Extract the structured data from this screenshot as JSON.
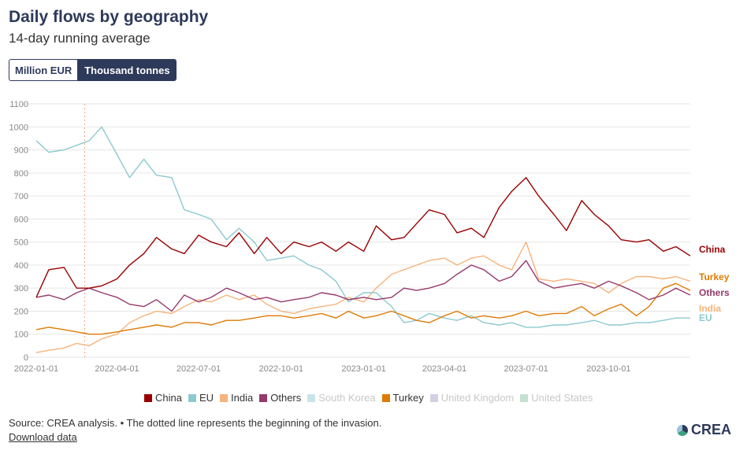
{
  "header": {
    "title": "Daily flows by geography",
    "subtitle": "14-day running average"
  },
  "toggle": {
    "option_a": "Million EUR",
    "option_b": "Thousand tonnes",
    "selected": "Thousand tonnes"
  },
  "chart_data": {
    "type": "line",
    "title": "Daily flows by geography",
    "subtitle": "14-day running average",
    "xlabel": "",
    "ylabel": "",
    "ylim": [
      0,
      1100
    ],
    "yticks": [
      0,
      100,
      200,
      300,
      400,
      500,
      600,
      700,
      800,
      900,
      1000,
      1100
    ],
    "xticks": [
      "2022-01-01",
      "2022-04-01",
      "2022-07-01",
      "2022-10-01",
      "2023-01-01",
      "2023-04-01",
      "2023-07-01",
      "2023-10-01"
    ],
    "xlim": [
      "2022-01-01",
      "2023-12-31"
    ],
    "grid": "horizontal",
    "legend_position": "bottom",
    "invasion_marker": "2022-02-24",
    "x": [
      "2022-01-01",
      "2022-01-15",
      "2022-02-01",
      "2022-02-15",
      "2022-03-01",
      "2022-03-15",
      "2022-04-01",
      "2022-04-15",
      "2022-05-01",
      "2022-05-15",
      "2022-06-01",
      "2022-06-15",
      "2022-07-01",
      "2022-07-15",
      "2022-08-01",
      "2022-08-15",
      "2022-09-01",
      "2022-09-15",
      "2022-10-01",
      "2022-10-15",
      "2022-11-01",
      "2022-11-15",
      "2022-12-01",
      "2022-12-15",
      "2023-01-01",
      "2023-01-15",
      "2023-02-01",
      "2023-02-15",
      "2023-03-01",
      "2023-03-15",
      "2023-04-01",
      "2023-04-15",
      "2023-05-01",
      "2023-05-15",
      "2023-06-01",
      "2023-06-15",
      "2023-07-01",
      "2023-07-15",
      "2023-08-01",
      "2023-08-15",
      "2023-09-01",
      "2023-09-15",
      "2023-10-01",
      "2023-10-15",
      "2023-11-01",
      "2023-11-15",
      "2023-12-01",
      "2023-12-15",
      "2023-12-31"
    ],
    "series": [
      {
        "name": "China",
        "color": "#990000",
        "values": [
          260,
          380,
          390,
          300,
          300,
          310,
          340,
          400,
          450,
          520,
          470,
          450,
          530,
          500,
          480,
          540,
          450,
          520,
          450,
          500,
          480,
          500,
          460,
          500,
          460,
          570,
          510,
          520,
          580,
          640,
          620,
          540,
          560,
          520,
          650,
          720,
          780,
          700,
          620,
          550,
          680,
          620,
          570,
          510,
          500,
          510,
          460,
          480,
          440
        ]
      },
      {
        "name": "EU",
        "color": "#8cc9d0",
        "values": [
          940,
          890,
          900,
          920,
          940,
          1000,
          880,
          780,
          860,
          790,
          780,
          640,
          620,
          600,
          510,
          560,
          500,
          420,
          430,
          440,
          400,
          380,
          330,
          240,
          280,
          280,
          220,
          150,
          160,
          190,
          170,
          160,
          180,
          150,
          140,
          150,
          130,
          130,
          140,
          140,
          150,
          160,
          140,
          140,
          150,
          150,
          160,
          170,
          170
        ]
      },
      {
        "name": "India",
        "color": "#f6b47b",
        "values": [
          20,
          30,
          40,
          60,
          50,
          80,
          100,
          150,
          180,
          200,
          190,
          220,
          250,
          240,
          270,
          250,
          270,
          230,
          200,
          190,
          210,
          220,
          230,
          260,
          240,
          300,
          360,
          380,
          400,
          420,
          430,
          400,
          430,
          440,
          400,
          380,
          500,
          340,
          330,
          340,
          330,
          320,
          280,
          320,
          350,
          350,
          340,
          350,
          330
        ]
      },
      {
        "name": "Others",
        "color": "#953a6b",
        "values": [
          260,
          270,
          250,
          280,
          300,
          280,
          260,
          230,
          220,
          250,
          200,
          270,
          240,
          260,
          300,
          280,
          250,
          260,
          240,
          250,
          260,
          280,
          270,
          250,
          260,
          250,
          260,
          300,
          290,
          300,
          320,
          360,
          400,
          380,
          330,
          350,
          420,
          330,
          300,
          310,
          320,
          300,
          330,
          310,
          280,
          250,
          270,
          300,
          270
        ]
      },
      {
        "name": "Turkey",
        "color": "#de7b06",
        "values": [
          120,
          130,
          120,
          110,
          100,
          100,
          110,
          120,
          130,
          140,
          130,
          150,
          150,
          140,
          160,
          160,
          170,
          180,
          180,
          170,
          180,
          190,
          170,
          200,
          170,
          180,
          200,
          180,
          160,
          150,
          180,
          200,
          170,
          180,
          170,
          180,
          200,
          180,
          190,
          190,
          220,
          180,
          210,
          230,
          180,
          220,
          300,
          320,
          290
        ]
      }
    ],
    "inactive_series": [
      {
        "name": "South Korea",
        "color": "#c8e4e8"
      },
      {
        "name": "United Kingdom",
        "color": "#d4d0e4"
      },
      {
        "name": "United States",
        "color": "#c4e0d0"
      }
    ],
    "end_labels": [
      {
        "name": "China",
        "color": "#990000"
      },
      {
        "name": "Turkey",
        "color": "#de7b06"
      },
      {
        "name": "Others",
        "color": "#953a6b"
      },
      {
        "name": "India",
        "color": "#f6b47b"
      },
      {
        "name": "EU",
        "color": "#8cc9d0"
      }
    ]
  },
  "legend": [
    {
      "label": "China",
      "color": "#990000",
      "active": true
    },
    {
      "label": "EU",
      "color": "#8cc9d0",
      "active": true
    },
    {
      "label": "India",
      "color": "#f6b47b",
      "active": true
    },
    {
      "label": "Others",
      "color": "#953a6b",
      "active": true
    },
    {
      "label": "South Korea",
      "color": "#c8e4e8",
      "active": false
    },
    {
      "label": "Turkey",
      "color": "#de7b06",
      "active": true
    },
    {
      "label": "United Kingdom",
      "color": "#d4d0e4",
      "active": false
    },
    {
      "label": "United States",
      "color": "#c4e0d0",
      "active": false
    }
  ],
  "footer": {
    "source": "Source: CREA analysis. • The dotted line represents the beginning of the invasion.",
    "download": "Download data"
  },
  "logo": {
    "text": "CREA"
  }
}
